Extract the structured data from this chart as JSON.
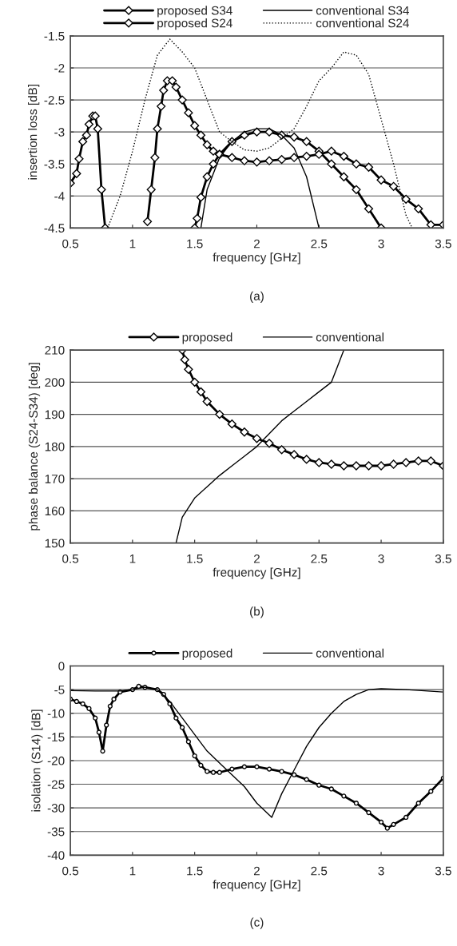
{
  "chart_data": [
    {
      "type": "line",
      "xlabel": "frequency [GHz]",
      "ylabel": "insertion loss [dB]",
      "annotations": [
        "(a)"
      ],
      "xlim": [
        0.5,
        3.5
      ],
      "xticks": [
        0.5,
        1,
        1.5,
        2,
        2.5,
        3,
        3.5
      ],
      "ylim": [
        -4.5,
        -1.5
      ],
      "yticks": [
        -4.5,
        -4,
        -3.5,
        -3,
        -2.5,
        -2,
        -1.5
      ],
      "grid": "y",
      "legend": "top",
      "series": [
        {
          "name": "proposed S34",
          "color": "#000000",
          "marker": "diamond",
          "line_style": "solid",
          "x": [
            0.5,
            0.55,
            0.57,
            0.6,
            0.63,
            0.65,
            0.68,
            0.7,
            0.72,
            0.75,
            0.78,
            null,
            1.5,
            1.52,
            1.55,
            1.6,
            1.65,
            1.7,
            1.8,
            1.9,
            2.0,
            2.1,
            2.2,
            2.3,
            2.4,
            2.5,
            2.6,
            2.7,
            2.8,
            2.9,
            3.0
          ],
          "values": [
            -3.8,
            -3.65,
            -3.42,
            -3.15,
            -3.05,
            -2.88,
            -2.75,
            -2.75,
            -2.95,
            -3.9,
            -4.5,
            null,
            -4.5,
            -4.35,
            -4.02,
            -3.7,
            -3.5,
            -3.35,
            -3.15,
            -3.05,
            -3.0,
            -3.0,
            -3.05,
            -3.08,
            -3.15,
            -3.3,
            -3.5,
            -3.7,
            -3.9,
            -4.2,
            -4.5
          ]
        },
        {
          "name": "proposed S24",
          "color": "#000000",
          "marker": "diamond",
          "line_style": "solid",
          "x": [
            1.12,
            1.15,
            1.18,
            1.2,
            1.23,
            1.25,
            1.28,
            1.32,
            1.35,
            1.4,
            1.45,
            1.5,
            1.55,
            1.6,
            1.65,
            1.7,
            1.8,
            1.9,
            2.0,
            2.1,
            2.2,
            2.3,
            2.4,
            2.5,
            2.6,
            2.7,
            2.8,
            2.9,
            3.0,
            3.1,
            3.2,
            3.3,
            3.4,
            3.5
          ],
          "values": [
            -4.4,
            -3.9,
            -3.4,
            -2.95,
            -2.6,
            -2.35,
            -2.2,
            -2.2,
            -2.3,
            -2.5,
            -2.7,
            -2.9,
            -3.05,
            -3.2,
            -3.3,
            -3.35,
            -3.4,
            -3.45,
            -3.47,
            -3.45,
            -3.43,
            -3.4,
            -3.38,
            -3.35,
            -3.3,
            -3.38,
            -3.5,
            -3.55,
            -3.75,
            -3.85,
            -4.05,
            -4.2,
            -4.45,
            -4.45
          ]
        },
        {
          "name": "conventional S34",
          "color": "#000000",
          "marker": "none",
          "line_style": "solid",
          "x": [
            1.55,
            1.6,
            1.7,
            1.8,
            1.9,
            2.0,
            2.1,
            2.2,
            2.3,
            2.4,
            2.5
          ],
          "values": [
            -4.5,
            -3.9,
            -3.4,
            -3.15,
            -3.0,
            -2.95,
            -2.95,
            -3.05,
            -3.25,
            -3.7,
            -4.5
          ]
        },
        {
          "name": "conventional S24",
          "color": "#000000",
          "marker": "none",
          "line_style": "dotted",
          "x": [
            0.8,
            0.9,
            1.0,
            1.1,
            1.2,
            1.3,
            1.4,
            1.5,
            1.6,
            1.7,
            1.8,
            1.9,
            2.0,
            2.1,
            2.2,
            2.3,
            2.4,
            2.5,
            2.6,
            2.7,
            2.8,
            2.9,
            3.0,
            3.1,
            3.2,
            3.25
          ],
          "values": [
            -4.5,
            -4.0,
            -3.3,
            -2.5,
            -1.8,
            -1.55,
            -1.75,
            -2.0,
            -2.5,
            -3.0,
            -3.15,
            -3.28,
            -3.3,
            -3.25,
            -3.1,
            -2.95,
            -2.6,
            -2.2,
            -2.0,
            -1.75,
            -1.8,
            -2.1,
            -2.8,
            -3.5,
            -4.3,
            -4.5
          ]
        }
      ]
    },
    {
      "type": "line",
      "xlabel": "frequency [GHz]",
      "ylabel": "phase balance (S24-S34) [deg]",
      "annotations": [
        "(b)"
      ],
      "xlim": [
        0.5,
        3.5
      ],
      "xticks": [
        0.5,
        1,
        1.5,
        2,
        2.5,
        3,
        3.5
      ],
      "ylim": [
        150,
        210
      ],
      "yticks": [
        150,
        160,
        170,
        180,
        190,
        200,
        210
      ],
      "grid": "y",
      "legend": "top",
      "series": [
        {
          "name": "proposed",
          "color": "#000000",
          "marker": "diamond",
          "line_style": "solid",
          "x": [
            1.4,
            1.42,
            1.45,
            1.5,
            1.55,
            1.6,
            1.7,
            1.8,
            1.9,
            2.0,
            2.1,
            2.2,
            2.3,
            2.4,
            2.5,
            2.6,
            2.7,
            2.8,
            2.9,
            3.0,
            3.1,
            3.2,
            3.3,
            3.4,
            3.5
          ],
          "values": [
            210,
            207,
            204,
            200,
            197,
            194,
            190,
            187,
            184.5,
            182.5,
            181,
            179,
            177.5,
            176,
            175,
            174.5,
            174,
            174,
            174,
            174,
            174.5,
            175,
            175.5,
            175.5,
            174
          ]
        },
        {
          "name": "conventional",
          "color": "#000000",
          "marker": "none",
          "line_style": "solid",
          "x": [
            1.35,
            1.4,
            1.5,
            1.6,
            1.7,
            1.8,
            1.9,
            2.0,
            2.1,
            2.2,
            2.3,
            2.4,
            2.5,
            2.6,
            2.65,
            2.7
          ],
          "values": [
            150,
            158,
            164,
            167.5,
            171,
            174,
            177,
            180,
            184,
            188,
            191,
            194,
            197,
            200,
            205,
            210
          ]
        }
      ]
    },
    {
      "type": "line",
      "xlabel": "frequency [GHz]",
      "ylabel": "isolation (S14) [dB]",
      "annotations": [
        "(c)"
      ],
      "xlim": [
        0.5,
        3.5
      ],
      "xticks": [
        0.5,
        1,
        1.5,
        2,
        2.5,
        3,
        3.5
      ],
      "ylim": [
        -40,
        0
      ],
      "yticks": [
        -40,
        -35,
        -30,
        -25,
        -20,
        -15,
        -10,
        -5,
        0
      ],
      "grid": "y",
      "legend": "top",
      "series": [
        {
          "name": "proposed",
          "color": "#000000",
          "marker": "circle",
          "line_style": "solid",
          "x": [
            0.5,
            0.55,
            0.6,
            0.65,
            0.7,
            0.73,
            0.76,
            0.79,
            0.82,
            0.85,
            0.9,
            1.0,
            1.05,
            1.1,
            1.2,
            1.25,
            1.3,
            1.35,
            1.4,
            1.45,
            1.5,
            1.55,
            1.6,
            1.65,
            1.7,
            1.8,
            1.9,
            2.0,
            2.1,
            2.2,
            2.3,
            2.4,
            2.5,
            2.6,
            2.7,
            2.8,
            2.9,
            3.0,
            3.05,
            3.1,
            3.2,
            3.3,
            3.4,
            3.5
          ],
          "values": [
            -7,
            -7.5,
            -8,
            -9,
            -11,
            -14,
            -18,
            -12.5,
            -8.5,
            -7,
            -5.5,
            -5,
            -4.3,
            -4.5,
            -5,
            -6,
            -8,
            -11,
            -13,
            -16,
            -19,
            -21,
            -22.3,
            -22.5,
            -22.5,
            -21.8,
            -21.3,
            -21.3,
            -21.8,
            -22.3,
            -23,
            -24,
            -25.2,
            -26,
            -27.5,
            -29,
            -31,
            -33,
            -34.3,
            -33.5,
            -32,
            -29,
            -26.5,
            -23.7
          ]
        },
        {
          "name": "conventional",
          "color": "#000000",
          "marker": "none",
          "line_style": "solid",
          "x": [
            0.5,
            0.7,
            0.9,
            1.0,
            1.1,
            1.2,
            1.3,
            1.4,
            1.5,
            1.6,
            1.7,
            1.8,
            1.9,
            2.0,
            2.12,
            2.2,
            2.3,
            2.4,
            2.5,
            2.6,
            2.7,
            2.8,
            2.9,
            3.0,
            3.2,
            3.5
          ],
          "values": [
            -5.2,
            -5.3,
            -5.3,
            -5,
            -4.5,
            -5,
            -7.5,
            -11,
            -14.5,
            -18,
            -20.5,
            -23,
            -25.5,
            -29,
            -32,
            -27,
            -22,
            -17,
            -13,
            -10,
            -7.5,
            -6,
            -5,
            -4.8,
            -5,
            -5.5
          ]
        }
      ]
    }
  ]
}
